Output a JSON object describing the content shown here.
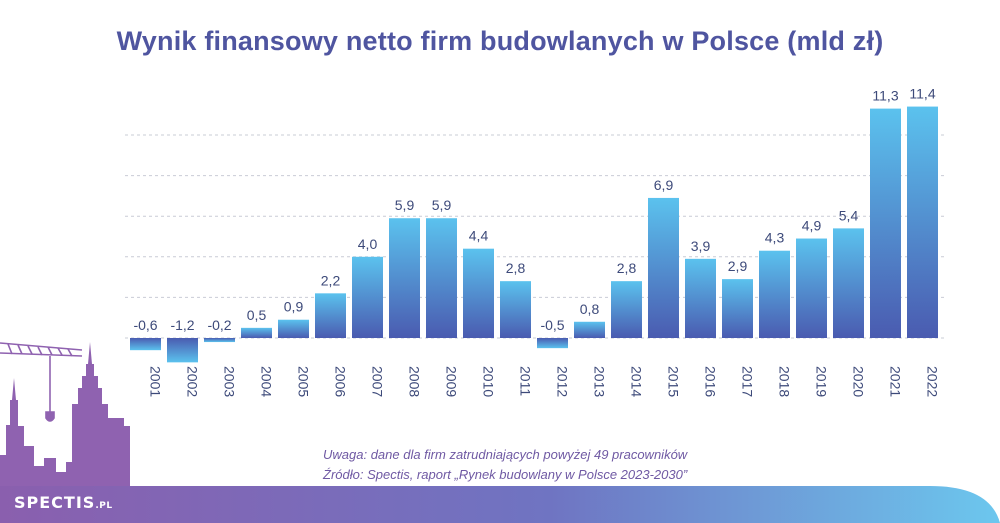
{
  "header": {
    "title": "Wynik finansowy netto firm budowlanych w Polsce (mld zł)"
  },
  "footer": {
    "note_line1": "Uwaga: dane dla firm zatrudniających powyżej 49 pracowników",
    "note_line2": "Źródło: Spectis, raport „Rynek budowlany w Polsce 2023-2030”"
  },
  "brand": {
    "name": "SPECTIS",
    "tld": ".PL"
  },
  "colors": {
    "title": "#4f55a0",
    "bar_top": "#5bc2ee",
    "bar_bottom": "#4a5bb0",
    "label": "#3d4a7a",
    "skyline": "#8f62b0",
    "note": "#6f59a3"
  },
  "chart_data": {
    "type": "bar",
    "title": "Wynik finansowy netto firm budowlanych w Polsce (mld zł)",
    "xlabel": "",
    "ylabel": "",
    "categories": [
      "2001",
      "2002",
      "2003",
      "2004",
      "2005",
      "2006",
      "2007",
      "2008",
      "2009",
      "2010",
      "2011",
      "2012",
      "2013",
      "2014",
      "2015",
      "2016",
      "2017",
      "2018",
      "2019",
      "2020",
      "2021",
      "2022"
    ],
    "values": [
      -0.6,
      -1.2,
      -0.2,
      0.5,
      0.9,
      2.2,
      4.0,
      5.9,
      5.9,
      4.4,
      2.8,
      -0.5,
      0.8,
      2.8,
      6.9,
      3.9,
      2.9,
      4.3,
      4.9,
      5.4,
      11.3,
      11.4
    ],
    "value_labels": [
      "-0,6",
      "-1,2",
      "-0,2",
      "0,5",
      "0,9",
      "2,2",
      "4,0",
      "5,9",
      "5,9",
      "4,4",
      "2,8",
      "-0,5",
      "0,8",
      "2,8",
      "6,9",
      "3,9",
      "2,9",
      "4,3",
      "4,9",
      "5,4",
      "11,3",
      "11,4"
    ],
    "ylim": [
      -1.5,
      12
    ],
    "grid": true,
    "gridlines": [
      2,
      4,
      6,
      8,
      10
    ],
    "legend": "none"
  }
}
